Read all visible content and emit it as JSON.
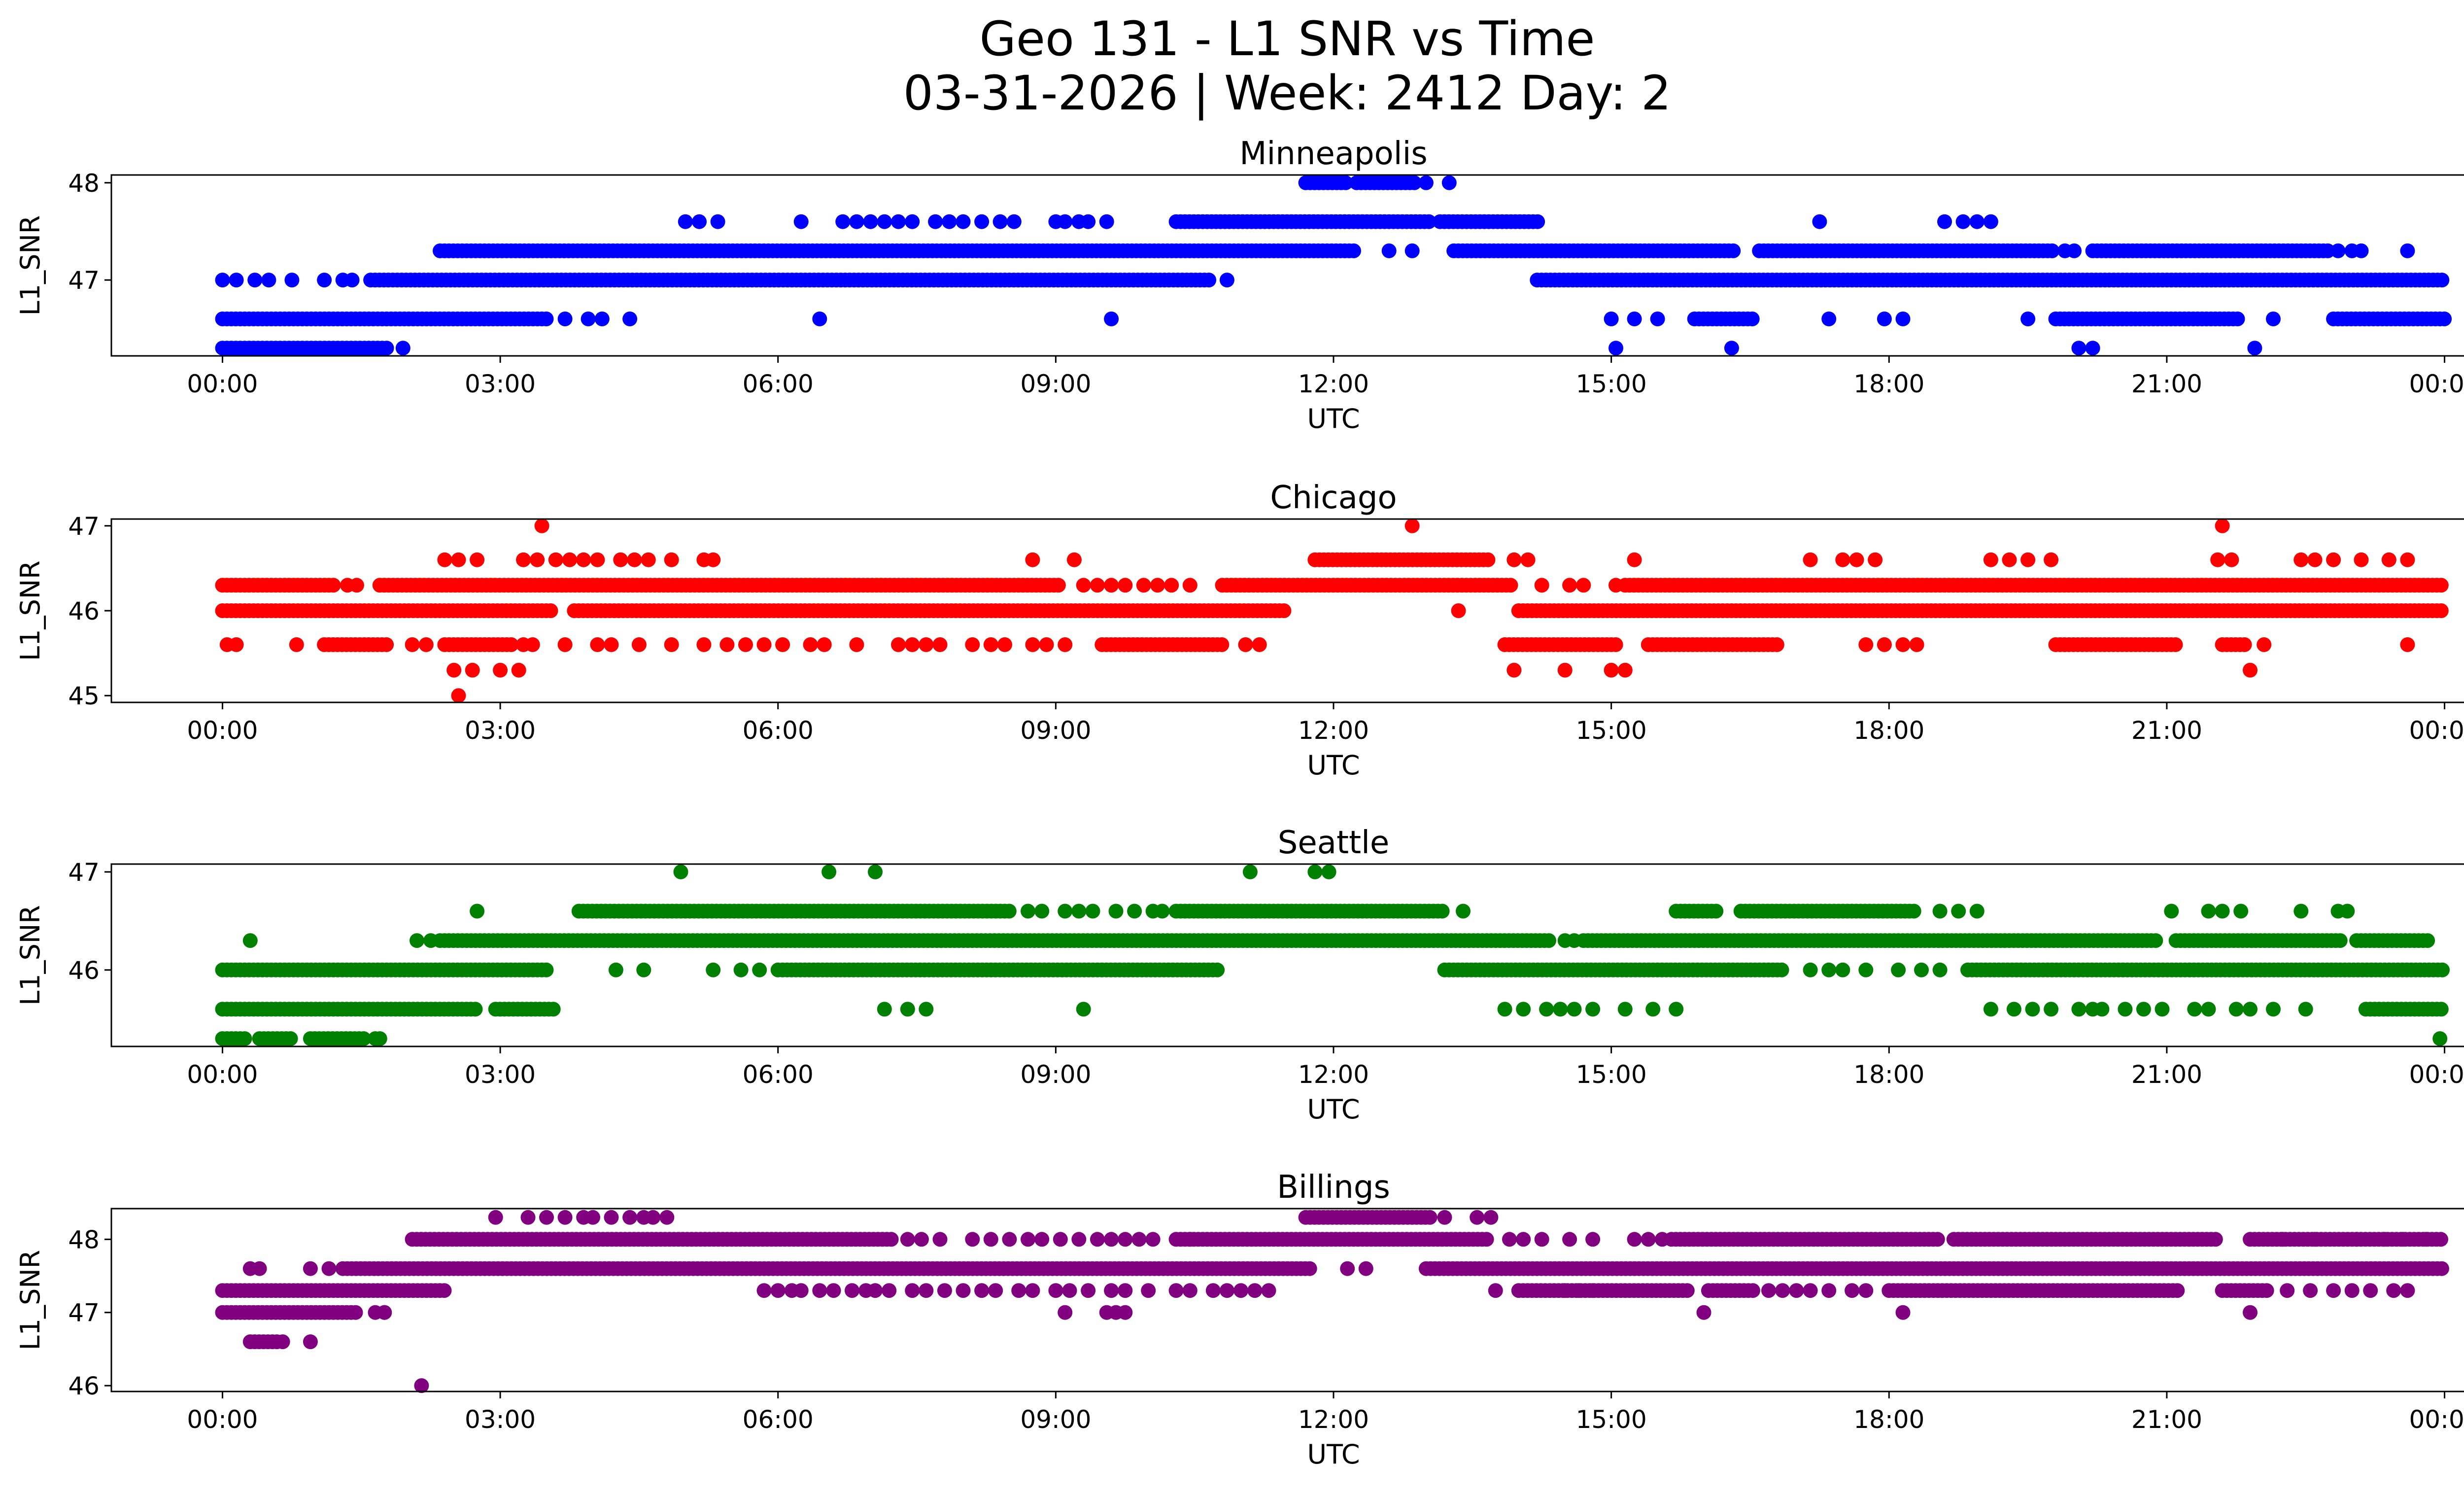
{
  "figure": {
    "title_line1": "Geo 131 - L1 SNR vs Time",
    "title_line2": "03-31-2026 | Week: 2412 Day: 2"
  },
  "chart_data": [
    {
      "type": "scatter",
      "title": "Minneapolis",
      "xlabel": "UTC",
      "ylabel": "L1_SNR",
      "color": "#0000ff",
      "xlim_hours": [
        -1.2,
        25.2
      ],
      "ylim": [
        46.22,
        48.08
      ],
      "yticks": [
        47,
        48
      ],
      "xticks": [
        "00:00",
        "03:00",
        "06:00",
        "09:00",
        "12:00",
        "15:00",
        "18:00",
        "21:00",
        "00:00"
      ],
      "grid": false,
      "series": [
        {
          "y": 48.0,
          "segments": [
            [
              11.7,
              12.15
            ],
            [
              12.25,
              12.9
            ]
          ],
          "points": [
            13.0,
            13.25
          ]
        },
        {
          "y": 47.6,
          "segments": [
            [
              10.3,
              13.05
            ],
            [
              13.15,
              14.25
            ]
          ],
          "points": [
            5.0,
            5.15,
            5.35,
            6.25,
            6.7,
            6.85,
            7.0,
            7.15,
            7.3,
            7.45,
            7.7,
            7.85,
            8.0,
            8.2,
            8.4,
            8.55,
            9.0,
            9.1,
            9.25,
            9.35,
            9.55,
            17.25,
            18.6,
            18.8,
            18.95,
            19.1
          ]
        },
        {
          "y": 47.3,
          "segments": [
            [
              2.35,
              12.25
            ],
            [
              13.3,
              16.35
            ],
            [
              16.6,
              19.8
            ],
            [
              20.2,
              22.75
            ]
          ],
          "points": [
            12.6,
            12.85,
            19.9,
            20.0,
            22.85,
            23.0,
            23.1,
            23.6
          ]
        },
        {
          "y": 47.0,
          "segments": [
            [
              1.6,
              10.7
            ],
            [
              14.2,
              24.0
            ]
          ],
          "points": [
            0.0,
            0.15,
            0.35,
            0.5,
            0.75,
            1.1,
            1.3,
            1.4,
            10.85
          ]
        },
        {
          "y": 46.6,
          "segments": [
            [
              0.0,
              3.5
            ],
            [
              15.9,
              16.55
            ],
            [
              19.8,
              21.8
            ],
            [
              22.8,
              24.0
            ]
          ],
          "points": [
            3.7,
            3.95,
            4.1,
            4.4,
            6.45,
            9.6,
            15.0,
            15.25,
            15.5,
            17.35,
            17.95,
            18.15,
            19.5,
            22.15
          ]
        },
        {
          "y": 46.3,
          "segments": [
            [
              0.0,
              1.8
            ]
          ],
          "points": [
            1.95,
            15.05,
            16.3,
            20.05,
            20.2,
            21.95
          ]
        }
      ]
    },
    {
      "type": "scatter",
      "title": "Chicago",
      "xlabel": "UTC",
      "ylabel": "L1_SNR",
      "color": "#ff0000",
      "xlim_hours": [
        -1.2,
        25.2
      ],
      "ylim": [
        44.92,
        47.08
      ],
      "yticks": [
        45,
        46,
        47
      ],
      "xticks": [
        "00:00",
        "03:00",
        "06:00",
        "09:00",
        "12:00",
        "15:00",
        "18:00",
        "21:00",
        "00:00"
      ],
      "grid": false,
      "series": [
        {
          "y": 47.0,
          "segments": [],
          "points": [
            3.45,
            12.85,
            21.6
          ]
        },
        {
          "y": 46.6,
          "segments": [
            [
              11.8,
              13.7
            ]
          ],
          "points": [
            2.4,
            2.55,
            2.75,
            3.25,
            3.4,
            3.6,
            3.75,
            3.9,
            4.05,
            4.3,
            4.45,
            4.6,
            4.85,
            5.2,
            5.3,
            8.75,
            9.2,
            13.95,
            14.1,
            15.25,
            17.15,
            17.5,
            17.65,
            17.85,
            19.1,
            19.3,
            19.5,
            19.75,
            21.55,
            21.7,
            22.45,
            22.6,
            22.8,
            23.1,
            23.4,
            23.6
          ]
        },
        {
          "y": 46.3,
          "segments": [
            [
              0.0,
              1.2
            ],
            [
              1.7,
              9.05
            ],
            [
              10.8,
              13.95
            ],
            [
              15.15,
              24.0
            ]
          ],
          "points": [
            1.35,
            1.45,
            9.3,
            9.45,
            9.6,
            9.75,
            9.95,
            10.1,
            10.25,
            10.45,
            14.25,
            14.55,
            14.7,
            15.05
          ]
        },
        {
          "y": 46.0,
          "segments": [
            [
              0.0,
              3.55
            ],
            [
              3.8,
              11.5
            ],
            [
              14.0,
              24.0
            ]
          ],
          "points": [
            13.35
          ]
        },
        {
          "y": 45.6,
          "segments": [
            [
              1.1,
              1.8
            ],
            [
              2.4,
              3.15
            ],
            [
              9.5,
              10.8
            ],
            [
              13.85,
              15.05
            ],
            [
              15.4,
              16.8
            ],
            [
              19.8,
              21.1
            ],
            [
              21.6,
              21.85
            ]
          ],
          "points": [
            0.05,
            0.15,
            0.8,
            2.05,
            2.2,
            3.25,
            3.35,
            3.7,
            4.05,
            4.2,
            4.5,
            4.85,
            5.2,
            5.45,
            5.65,
            5.85,
            6.05,
            6.35,
            6.5,
            6.85,
            7.3,
            7.45,
            7.6,
            7.75,
            8.1,
            8.3,
            8.45,
            8.75,
            8.9,
            9.1,
            11.05,
            11.2,
            17.75,
            17.95,
            18.15,
            18.3,
            22.05,
            23.6
          ]
        },
        {
          "y": 45.3,
          "segments": [],
          "points": [
            2.5,
            2.7,
            3.0,
            3.2,
            13.95,
            14.5,
            15.0,
            15.15,
            21.9
          ]
        },
        {
          "y": 45.0,
          "segments": [],
          "points": [
            2.55
          ]
        }
      ]
    },
    {
      "type": "scatter",
      "title": "Seattle",
      "xlabel": "UTC",
      "ylabel": "L1_SNR",
      "color": "#008000",
      "xlim_hours": [
        -1.2,
        25.2
      ],
      "ylim": [
        45.22,
        47.08
      ],
      "yticks": [
        46,
        47
      ],
      "xticks": [
        "00:00",
        "03:00",
        "06:00",
        "09:00",
        "12:00",
        "15:00",
        "18:00",
        "21:00",
        "00:00"
      ],
      "grid": false,
      "series": [
        {
          "y": 47.0,
          "segments": [],
          "points": [
            4.95,
            6.55,
            7.05,
            11.1,
            11.8,
            11.95
          ]
        },
        {
          "y": 46.6,
          "segments": [
            [
              3.85,
              8.5
            ],
            [
              10.3,
              13.2
            ],
            [
              15.7,
              16.15
            ],
            [
              16.4,
              18.3
            ]
          ],
          "points": [
            2.75,
            8.7,
            8.85,
            9.1,
            9.25,
            9.4,
            9.65,
            9.85,
            10.05,
            10.15,
            13.4,
            18.55,
            18.75,
            18.95,
            21.05,
            21.45,
            21.6,
            21.8,
            22.45,
            22.85,
            22.95
          ]
        },
        {
          "y": 46.3,
          "segments": [
            [
              2.35,
              14.35
            ],
            [
              14.7,
              20.9
            ],
            [
              21.1,
              22.9
            ],
            [
              23.05,
              23.85
            ]
          ],
          "points": [
            0.3,
            2.1,
            2.25,
            14.5,
            14.6
          ]
        },
        {
          "y": 46.0,
          "segments": [
            [
              0.0,
              3.5
            ],
            [
              6.05,
              10.75
            ],
            [
              13.2,
              16.85
            ],
            [
              18.85,
              24.0
            ]
          ],
          "points": [
            4.25,
            4.55,
            5.3,
            5.6,
            5.8,
            6.0,
            17.15,
            17.35,
            17.5,
            17.75,
            18.1,
            18.35,
            18.55
          ]
        },
        {
          "y": 45.6,
          "segments": [
            [
              0.0,
              2.75
            ],
            [
              2.95,
              3.6
            ],
            [
              23.15,
              24.0
            ]
          ],
          "points": [
            7.15,
            7.4,
            7.6,
            9.3,
            13.85,
            14.05,
            14.3,
            14.45,
            14.6,
            14.8,
            15.15,
            15.45,
            15.7,
            19.1,
            19.35,
            19.55,
            19.75,
            20.05,
            20.2,
            20.3,
            20.55,
            20.75,
            20.95,
            21.3,
            21.45,
            21.75,
            21.9,
            22.15,
            22.5
          ]
        },
        {
          "y": 45.3,
          "segments": [
            [
              0.0,
              0.25
            ],
            [
              0.4,
              0.75
            ],
            [
              0.95,
              1.55
            ]
          ],
          "points": [
            1.65,
            1.7,
            23.95
          ]
        }
      ]
    },
    {
      "type": "scatter",
      "title": "Billings",
      "xlabel": "UTC",
      "ylabel": "L1_SNR",
      "color": "#800080",
      "xlim_hours": [
        -1.2,
        25.2
      ],
      "ylim": [
        45.92,
        48.42
      ],
      "yticks": [
        46,
        47,
        48
      ],
      "xticks": [
        "00:00",
        "03:00",
        "06:00",
        "09:00",
        "12:00",
        "15:00",
        "18:00",
        "21:00",
        "00:00"
      ],
      "grid": false,
      "series": [
        {
          "y": 48.3,
          "segments": [
            [
              11.7,
              13.05
            ]
          ],
          "points": [
            2.95,
            3.3,
            3.5,
            3.7,
            3.9,
            4.0,
            4.2,
            4.4,
            4.55,
            4.65,
            4.8,
            13.2,
            13.55,
            13.7
          ]
        },
        {
          "y": 48.0,
          "segments": [
            [
              2.05,
              7.25
            ],
            [
              10.3,
              13.7
            ],
            [
              15.65,
              18.55
            ],
            [
              18.7,
              21.55
            ],
            [
              21.9,
              24.0
            ]
          ],
          "points": [
            7.4,
            7.55,
            7.75,
            8.1,
            8.3,
            8.5,
            8.7,
            8.85,
            9.05,
            9.25,
            9.45,
            9.6,
            9.75,
            9.9,
            10.05,
            10.45,
            13.9,
            14.05,
            14.25,
            14.55,
            14.8,
            15.25,
            15.4,
            15.55,
            22.25,
            22.6,
            23.05,
            23.35,
            23.55,
            23.8
          ]
        },
        {
          "y": 47.6,
          "segments": [
            [
              1.3,
              11.75
            ],
            [
              13.0,
              24.0
            ]
          ],
          "points": [
            0.3,
            0.4,
            0.95,
            1.15,
            12.15,
            12.35
          ]
        },
        {
          "y": 47.3,
          "segments": [
            [
              0.0,
              2.4
            ],
            [
              14.0,
              15.85
            ],
            [
              16.05,
              16.55
            ],
            [
              18.0,
              21.15
            ],
            [
              21.6,
              22.1
            ]
          ],
          "points": [
            5.85,
            6.0,
            6.15,
            6.25,
            6.45,
            6.6,
            6.8,
            6.95,
            7.05,
            7.2,
            7.45,
            7.6,
            7.8,
            8.0,
            8.2,
            8.35,
            8.6,
            8.75,
            9.0,
            9.15,
            9.35,
            9.6,
            9.75,
            10.0,
            10.3,
            10.45,
            10.7,
            10.85,
            11.0,
            11.15,
            11.3,
            13.75,
            14.5,
            14.65,
            14.8,
            16.7,
            16.85,
            17.0,
            17.15,
            17.35,
            17.6,
            17.75,
            22.3,
            22.55,
            22.8,
            23.0,
            23.2,
            23.45,
            23.6
          ]
        },
        {
          "y": 47.0,
          "segments": [
            [
              0.0,
              1.45
            ]
          ],
          "points": [
            1.65,
            1.75,
            1.75,
            9.1,
            9.55,
            9.65,
            9.75,
            16.0,
            18.15,
            21.9
          ]
        },
        {
          "y": 46.6,
          "segments": [
            [
              0.3,
              0.6
            ]
          ],
          "points": [
            0.65,
            0.95
          ]
        },
        {
          "y": 46.0,
          "segments": [],
          "points": [
            2.15
          ]
        }
      ]
    }
  ]
}
